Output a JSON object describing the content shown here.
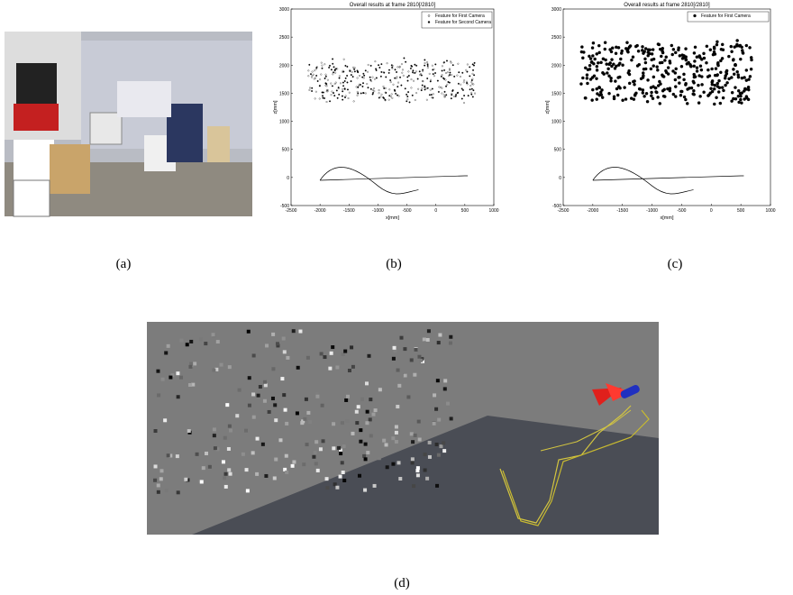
{
  "panels": [
    {
      "label": "(a)"
    },
    {
      "label": "(b)",
      "title": "Overall results at frame 2810[/2810]",
      "xlabel": "x[mm]",
      "ylabel": "z[mm]",
      "xticks": [
        -2500,
        -2000,
        -1500,
        -1000,
        -500,
        0,
        500,
        1000
      ],
      "yticks": [
        -500,
        0,
        500,
        1000,
        1500,
        2000,
        2500,
        3000
      ],
      "legend": [
        "Feature for First Camera",
        "Feature for Second Camera"
      ]
    },
    {
      "label": "(c)",
      "title": "Overall results at frame 2810[/2810]",
      "xlabel": "x[mm]",
      "ylabel": "z[mm]",
      "xticks": [
        -2500,
        -2000,
        -1500,
        -1000,
        -500,
        0,
        500,
        1000
      ],
      "yticks": [
        -500,
        0,
        500,
        1000,
        1500,
        2000,
        2500,
        3000
      ],
      "legend": [
        "Feature for First Camera"
      ]
    },
    {
      "label": "(d)"
    }
  ]
}
